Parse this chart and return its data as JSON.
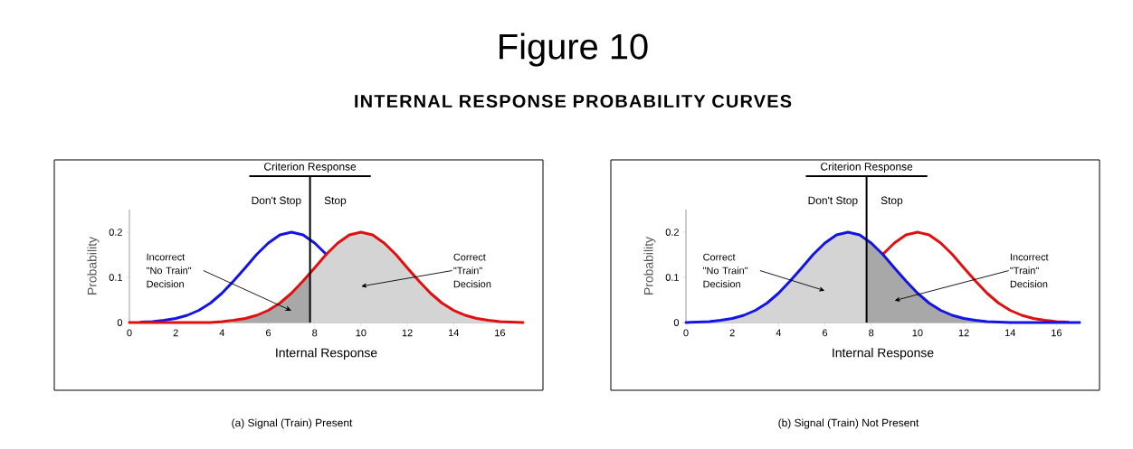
{
  "chart_data": [
    {
      "type": "line",
      "title": "Figure 10",
      "subtitle": "INTERNAL RESPONSE PROBABILITY CURVES",
      "xlabel": "Internal Response",
      "ylabel": "Probability",
      "xlim": [
        0,
        17
      ],
      "ylim": [
        0,
        0.25
      ],
      "xticks": [
        0,
        2,
        4,
        6,
        8,
        10,
        12,
        14,
        16
      ],
      "yticks": [
        0,
        0.1,
        0.2
      ],
      "grid": false,
      "marker": "none",
      "x": [
        0,
        0.5,
        1,
        1.5,
        2,
        2.5,
        3,
        3.5,
        4,
        4.5,
        5,
        5.5,
        6,
        6.5,
        7,
        7.5,
        8,
        8.5,
        9,
        9.5,
        10,
        10.5,
        11,
        11.5,
        12,
        12.5,
        13,
        13.5,
        14,
        14.5,
        15,
        15.5,
        16,
        16.5,
        17
      ],
      "series": [
        {
          "type": "area",
          "color": "#a8a8a8",
          "x": [
            4.5,
            5,
            5.5,
            6,
            6.5,
            7,
            7.5,
            7.8
          ],
          "values": [
            0.005,
            0.009,
            0.016,
            0.027,
            0.043,
            0.065,
            0.092,
            0.109
          ]
        },
        {
          "type": "area",
          "color": "#d4d4d4",
          "x": [
            7.8,
            8,
            8.5,
            9,
            9.5,
            10,
            10.5,
            11,
            11.5,
            12,
            12.5,
            13,
            13.5,
            14,
            14.5,
            15,
            15.5,
            16,
            16.5,
            17
          ],
          "values": [
            0.109,
            0.121,
            0.151,
            0.176,
            0.194,
            0.2,
            0.194,
            0.176,
            0.151,
            0.121,
            0.092,
            0.065,
            0.043,
            0.027,
            0.016,
            0.009,
            0.005,
            0.002,
            0.001,
            0
          ]
        },
        {
          "color": "#1414e6",
          "values": [
            null,
            0.001,
            0.002,
            0.005,
            0.009,
            0.016,
            0.027,
            0.043,
            0.065,
            0.092,
            0.121,
            0.151,
            0.176,
            0.194,
            0.2,
            0.194,
            0.176,
            0.151,
            null,
            null,
            null,
            null,
            null,
            null,
            null,
            null,
            null,
            null,
            null,
            null,
            null,
            null,
            null,
            null,
            null
          ]
        },
        {
          "color": "#e01010",
          "values": [
            0,
            0,
            0,
            0,
            0,
            0,
            0,
            0,
            0.002,
            0.005,
            0.009,
            0.016,
            0.027,
            0.043,
            0.065,
            0.092,
            0.121,
            0.151,
            0.176,
            0.194,
            0.2,
            0.194,
            0.176,
            0.151,
            0.121,
            0.092,
            0.065,
            0.043,
            0.027,
            0.016,
            0.009,
            0.005,
            0.002,
            0.001,
            0
          ]
        }
      ],
      "ref_lines": [
        {
          "axis": "x",
          "value": 7.8,
          "label": "Criterion Response",
          "color": "#000000"
        }
      ],
      "annotations": [
        "Don't Stop",
        "Stop",
        "(a) Signal (Train) Present",
        "Incorrect \"No Train\" Decision",
        "Correct \"Train\" Decision"
      ]
    },
    {
      "type": "line",
      "xlabel": "Internal Response",
      "ylabel": "Probability",
      "xlim": [
        0,
        17
      ],
      "ylim": [
        0,
        0.25
      ],
      "xticks": [
        0,
        2,
        4,
        6,
        8,
        10,
        12,
        14,
        16
      ],
      "yticks": [
        0,
        0.1,
        0.2
      ],
      "grid": false,
      "marker": "none",
      "x": [
        0,
        0.5,
        1,
        1.5,
        2,
        2.5,
        3,
        3.5,
        4,
        4.5,
        5,
        5.5,
        6,
        6.5,
        7,
        7.5,
        8,
        8.5,
        9,
        9.5,
        10,
        10.5,
        11,
        11.5,
        12,
        12.5,
        13,
        13.5,
        14,
        14.5,
        15,
        15.5,
        16,
        16.5,
        17
      ],
      "series": [
        {
          "type": "area",
          "color": "#d4d4d4",
          "x": [
            1.5,
            2,
            2.5,
            3,
            3.5,
            4,
            4.5,
            5,
            5.5,
            6,
            6.5,
            7,
            7.5,
            7.8
          ],
          "values": [
            0.005,
            0.009,
            0.016,
            0.027,
            0.043,
            0.065,
            0.092,
            0.121,
            0.151,
            0.176,
            0.194,
            0.2,
            0.194,
            0.185
          ]
        },
        {
          "type": "area",
          "color": "#a8a8a8",
          "x": [
            7.8,
            8,
            8.5,
            9,
            9.5,
            10,
            10.5,
            11,
            11.5,
            12,
            12.5,
            13
          ],
          "values": [
            0.185,
            0.176,
            0.151,
            0.121,
            0.092,
            0.065,
            0.043,
            0.027,
            0.016,
            0.009,
            0.005,
            0.002
          ]
        },
        {
          "color": "#e01010",
          "values": [
            null,
            null,
            null,
            null,
            null,
            null,
            null,
            null,
            null,
            null,
            null,
            null,
            null,
            null,
            null,
            null,
            null,
            0.151,
            0.176,
            0.194,
            0.2,
            0.194,
            0.176,
            0.151,
            0.121,
            0.092,
            0.065,
            0.043,
            0.027,
            0.016,
            0.009,
            0.005,
            0.002,
            0.001,
            null
          ]
        },
        {
          "color": "#1414e6",
          "values": [
            0,
            0.001,
            0.002,
            0.005,
            0.009,
            0.016,
            0.027,
            0.043,
            0.065,
            0.092,
            0.121,
            0.151,
            0.176,
            0.194,
            0.2,
            0.194,
            0.176,
            0.151,
            0.121,
            0.092,
            0.065,
            0.043,
            0.027,
            0.016,
            0.009,
            0.005,
            0.002,
            0.001,
            0,
            0,
            0,
            0,
            0,
            0,
            0
          ]
        }
      ],
      "ref_lines": [
        {
          "axis": "x",
          "value": 7.8,
          "label": "Criterion Response",
          "color": "#000000"
        }
      ],
      "annotations": [
        "Don't Stop",
        "Stop",
        "(b) Signal (Train) Not Present",
        "Correct \"No Train\" Decision",
        "Incorrect \"Train\" Decision"
      ]
    }
  ]
}
